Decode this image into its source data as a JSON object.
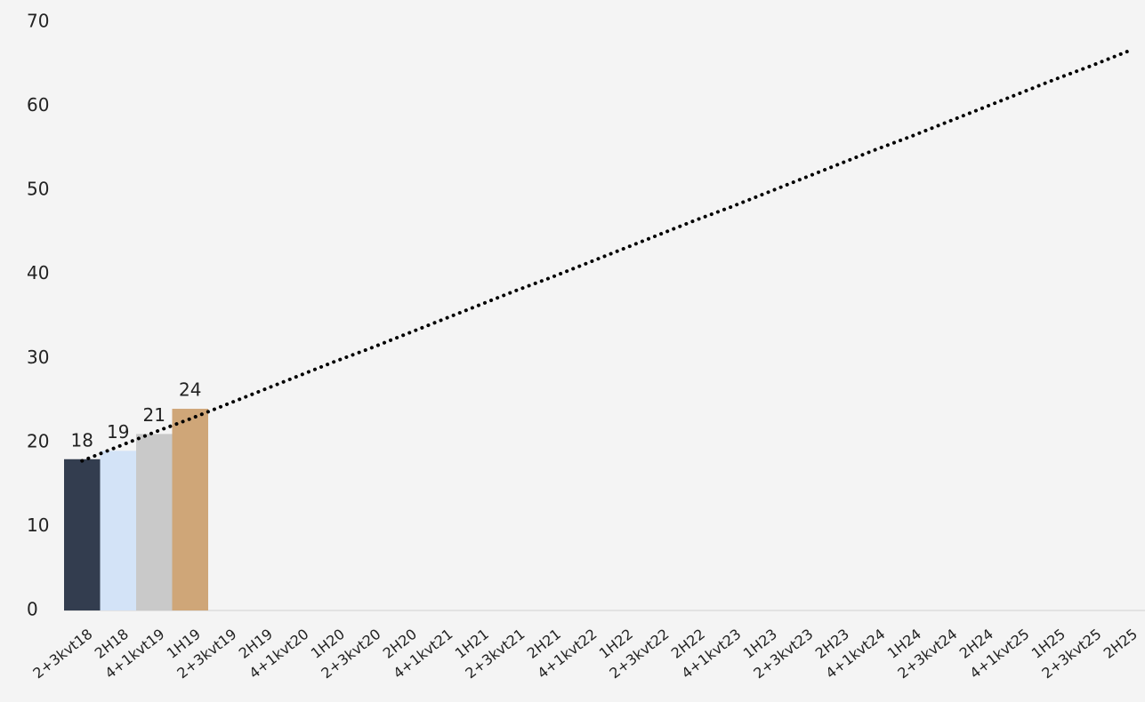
{
  "chart_data": {
    "type": "bar",
    "categories": [
      "2+3kvt18",
      "2H18",
      "4+1kvt19",
      "1H19",
      "2+3kvt19",
      "2H19",
      "4+1kvt20",
      "1H20",
      "2+3kvt20",
      "2H20",
      "4+1kvt21",
      "1H21",
      "2+3kvt21",
      "2H21",
      "4+1kvt22",
      "1H22",
      "2+3kvt22",
      "2H22",
      "4+1kvt23",
      "1H23",
      "2+3kvt23",
      "2H23",
      "4+1kvt24",
      "1H24",
      "2+3kvt24",
      "2H24",
      "4+1kvt25",
      "1H25",
      "2+3kvt25",
      "2H25"
    ],
    "values": [
      18,
      19,
      21,
      24,
      null,
      null,
      null,
      null,
      null,
      null,
      null,
      null,
      null,
      null,
      null,
      null,
      null,
      null,
      null,
      null,
      null,
      null,
      null,
      null,
      null,
      null,
      null,
      null,
      null,
      null
    ],
    "colors": [
      "#333d4f",
      "#d3e3f7",
      "#c9c9c9",
      "#cfa678"
    ],
    "trendline": {
      "color": "#000000",
      "style": "dotted",
      "values": [
        17.8,
        19.5,
        21.2,
        22.8,
        24.5,
        26.2,
        27.9,
        29.6,
        31.2,
        32.9,
        34.6,
        36.3,
        38.0,
        39.6,
        41.3,
        43.0,
        44.7,
        46.4,
        48.0,
        49.7,
        51.4,
        53.1,
        54.8,
        56.4,
        58.1,
        59.8,
        61.5,
        63.2,
        64.8,
        66.5
      ]
    },
    "ylim": [
      0,
      70
    ],
    "yticks": [
      0,
      10,
      20,
      30,
      40,
      50,
      60,
      70
    ],
    "grid": false
  }
}
